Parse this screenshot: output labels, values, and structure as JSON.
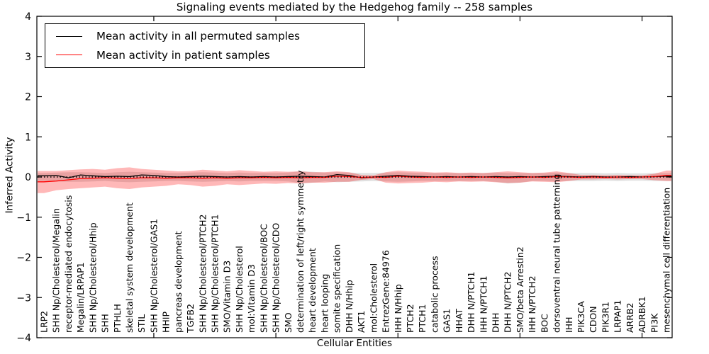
{
  "chart_data": {
    "type": "line",
    "title": "Signaling events mediated by the Hedgehog family -- 258 samples",
    "xlabel": "Cellular Entities",
    "ylabel": "Inferred Activity",
    "ylim": [
      -4,
      4
    ],
    "y_ticks": [
      4,
      3,
      2,
      1,
      0,
      -1,
      -2,
      -3,
      -4
    ],
    "y_tick_labels": [
      "4",
      "3",
      "2",
      "1",
      "0",
      "−1",
      "−2",
      "−3",
      "−4"
    ],
    "x_major_ticks": [
      10,
      20,
      30,
      40,
      50
    ],
    "grid": false,
    "legend_position": "upper left",
    "zero_line": {
      "value": 0,
      "style": "dotted",
      "color": "#000000"
    },
    "categories": [
      "LRP2",
      "SHH Np/Cholesterol/Megalin",
      "receptor-mediated endocytosis",
      "Megalin/LRPAP1",
      "SHH Np/Cholesterol/Hhip",
      "SHH",
      "PTHLH",
      "skeletal system development",
      "STIL",
      "SHH Np/Cholesterol/GAS1",
      "HHIP",
      "pancreas development",
      "TGFB2",
      "SHH Np/Cholesterol/PTCH2",
      "SHH Np/Cholesterol/PTCH1",
      "SMO/Vitamin D3",
      "SHH Np/Cholesterol",
      "mol:Vitamin D3",
      "SHH Np/Cholesterol/BOC",
      "SHH Np/Cholesterol/CDO",
      "SMO",
      "determination of left/right symmetry",
      "heart development",
      "heart looping",
      "somite specification",
      "DHH N/Hhip",
      "AKT1",
      "mol:Cholesterol",
      "EntrezGene:84976",
      "IHH N/Hhip",
      "PTCH2",
      "PTCH1",
      "catabolic process",
      "GAS1",
      "HHAT",
      "DHH N/PTCH1",
      "IHH N/PTCH1",
      "DHH",
      "DHH N/PTCH2",
      "SMO/beta Arrestin2",
      "IHH N/PTCH2",
      "BOC",
      "dorsoventral neural tube patterning",
      "IHH",
      "PIK3CA",
      "CDON",
      "PIK3R1",
      "LRPAP1",
      "ARRB2",
      "ADRBK1",
      "PI3K",
      "mesenchymal cell differentiation"
    ],
    "series": [
      {
        "name": "Mean activity in all permuted samples",
        "color": "#000000",
        "band_color": "#999999",
        "band_opacity": 0.3,
        "values": [
          0.03,
          0.04,
          -0.02,
          0.05,
          0.03,
          0.01,
          0.02,
          0.01,
          0.05,
          0.04,
          0.01,
          0.0,
          0.01,
          0.02,
          0.01,
          0.0,
          0.01,
          0.0,
          0.01,
          0.0,
          0.01,
          0.02,
          0.01,
          0.0,
          0.06,
          0.04,
          -0.02,
          0.0,
          0.02,
          0.04,
          0.02,
          0.01,
          0.0,
          0.01,
          0.0,
          0.01,
          0.0,
          0.01,
          0.0,
          0.01,
          0.0,
          0.01,
          0.02,
          0.01,
          0.0,
          0.01,
          0.0,
          0.0,
          0.01,
          0.0,
          0.01,
          0.02
        ],
        "band_upper": [
          0.1,
          0.11,
          0.12,
          0.12,
          0.11,
          0.1,
          0.12,
          0.13,
          0.12,
          0.11,
          0.1,
          0.1,
          0.11,
          0.12,
          0.11,
          0.1,
          0.11,
          0.1,
          0.1,
          0.1,
          0.11,
          0.14,
          0.13,
          0.11,
          0.12,
          0.11,
          0.1,
          0.1,
          0.11,
          0.12,
          0.11,
          0.1,
          0.1,
          0.1,
          0.1,
          0.1,
          0.1,
          0.11,
          0.1,
          0.1,
          0.1,
          0.1,
          0.11,
          0.1,
          0.1,
          0.1,
          0.09,
          0.1,
          0.09,
          0.09,
          0.1,
          0.1
        ],
        "band_lower": [
          -0.1,
          -0.11,
          -0.12,
          -0.12,
          -0.11,
          -0.1,
          -0.12,
          -0.13,
          -0.12,
          -0.11,
          -0.1,
          -0.1,
          -0.11,
          -0.12,
          -0.11,
          -0.1,
          -0.11,
          -0.1,
          -0.1,
          -0.1,
          -0.11,
          -0.15,
          -0.14,
          -0.11,
          -0.13,
          -0.12,
          -0.11,
          -0.1,
          -0.11,
          -0.12,
          -0.11,
          -0.1,
          -0.1,
          -0.1,
          -0.1,
          -0.1,
          -0.1,
          -0.12,
          -0.16,
          -0.14,
          -0.1,
          -0.1,
          -0.11,
          -0.1,
          -0.1,
          -0.1,
          -0.09,
          -0.1,
          -0.09,
          -0.09,
          -0.1,
          -0.1
        ]
      },
      {
        "name": "Mean activity in patient samples",
        "color": "#ff0000",
        "band_color": "#ff0000",
        "band_opacity": 0.28,
        "values": [
          -0.12,
          -0.1,
          -0.07,
          -0.04,
          -0.03,
          -0.02,
          -0.03,
          -0.04,
          -0.02,
          -0.02,
          -0.03,
          -0.02,
          -0.02,
          -0.03,
          -0.02,
          -0.03,
          -0.02,
          -0.02,
          -0.01,
          -0.02,
          -0.01,
          -0.02,
          -0.01,
          -0.01,
          0.02,
          0.01,
          -0.01,
          0.0,
          -0.01,
          0.02,
          0.0,
          -0.01,
          0.0,
          -0.01,
          0.0,
          -0.01,
          0.0,
          -0.01,
          -0.02,
          -0.01,
          0.0,
          -0.01,
          0.01,
          0.0,
          -0.01,
          0.0,
          -0.01,
          0.0,
          -0.01,
          0.0,
          0.01,
          0.04
        ],
        "band_upper": [
          0.15,
          0.15,
          0.17,
          0.19,
          0.2,
          0.18,
          0.22,
          0.24,
          0.2,
          0.18,
          0.16,
          0.14,
          0.15,
          0.18,
          0.16,
          0.14,
          0.17,
          0.15,
          0.13,
          0.14,
          0.13,
          0.14,
          0.12,
          0.12,
          0.14,
          0.12,
          0.05,
          0.04,
          0.12,
          0.16,
          0.14,
          0.13,
          0.11,
          0.12,
          0.1,
          0.11,
          0.1,
          0.12,
          0.14,
          0.12,
          0.1,
          0.11,
          0.14,
          0.1,
          0.05,
          0.05,
          0.04,
          0.05,
          0.04,
          0.04,
          0.08,
          0.16
        ],
        "band_lower": [
          -0.4,
          -0.33,
          -0.3,
          -0.28,
          -0.26,
          -0.24,
          -0.28,
          -0.3,
          -0.26,
          -0.24,
          -0.22,
          -0.18,
          -0.2,
          -0.24,
          -0.22,
          -0.18,
          -0.2,
          -0.18,
          -0.16,
          -0.17,
          -0.15,
          -0.16,
          -0.14,
          -0.14,
          -0.12,
          -0.12,
          -0.07,
          -0.05,
          -0.14,
          -0.16,
          -0.15,
          -0.14,
          -0.12,
          -0.13,
          -0.11,
          -0.12,
          -0.11,
          -0.13,
          -0.15,
          -0.14,
          -0.11,
          -0.12,
          -0.13,
          -0.1,
          -0.06,
          -0.06,
          -0.05,
          -0.06,
          -0.05,
          -0.05,
          -0.08,
          -0.1
        ]
      }
    ]
  }
}
